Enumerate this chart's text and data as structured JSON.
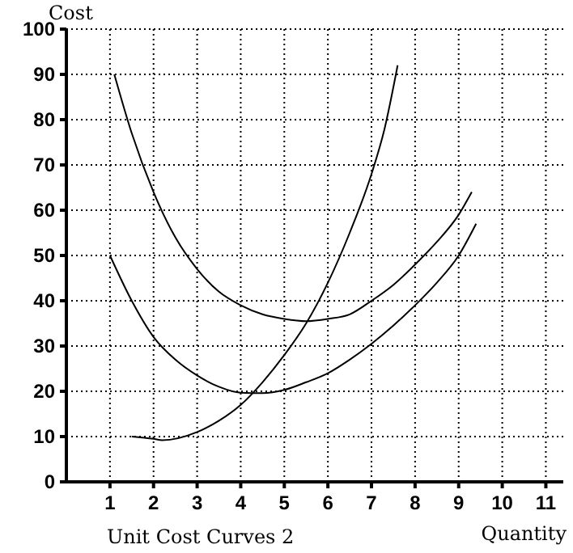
{
  "chart_data": {
    "type": "line",
    "title": "Unit Cost Curves 2",
    "xlabel": "Quantity",
    "ylabel": "Cost",
    "xlim": [
      0,
      11.4
    ],
    "ylim": [
      0,
      100
    ],
    "xticks": [
      1,
      2,
      3,
      4,
      5,
      6,
      7,
      8,
      9,
      10,
      11
    ],
    "yticks": [
      0,
      10,
      20,
      30,
      40,
      50,
      60,
      70,
      80,
      90,
      100
    ],
    "grid": true,
    "marker": "none",
    "line_style": "solid",
    "series": [
      {
        "color": "#000000",
        "x": [
          1.5,
          2,
          2.2,
          3,
          3.5,
          4,
          4.5,
          5,
          5.5,
          6,
          6.5,
          7,
          7.3,
          7.6
        ],
        "values": [
          10,
          9.5,
          9.2,
          11,
          13.5,
          17,
          22,
          28,
          35,
          44,
          55,
          68,
          78,
          92
        ]
      },
      {
        "color": "#000000",
        "x": [
          1.1,
          1.5,
          2,
          2.5,
          3,
          3.5,
          4,
          4.5,
          5,
          5.5,
          6,
          6.5,
          7,
          7.5,
          8,
          8.5,
          9,
          9.3
        ],
        "values": [
          90,
          77,
          64,
          54,
          47,
          42,
          39,
          37,
          36,
          35.5,
          36,
          37,
          40,
          43.5,
          48,
          53,
          59,
          64
        ]
      },
      {
        "color": "#000000",
        "x": [
          1,
          1.5,
          2,
          2.5,
          3,
          3.5,
          4,
          4.5,
          5,
          5.5,
          6,
          6.5,
          7,
          7.5,
          8,
          8.5,
          9,
          9.4
        ],
        "values": [
          50,
          40,
          32,
          27,
          23.5,
          21,
          19.7,
          19.6,
          20.3,
          22,
          24,
          27,
          30.5,
          34.5,
          39,
          44,
          50,
          57
        ]
      }
    ]
  }
}
